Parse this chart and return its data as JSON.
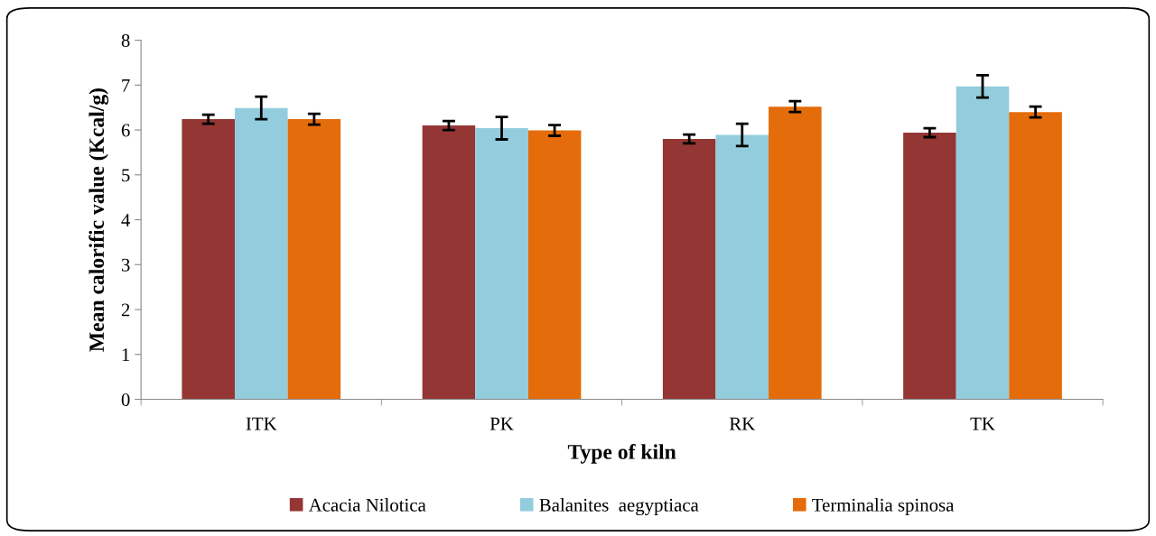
{
  "chart_data": {
    "type": "bar",
    "xlabel": "Type of kiln",
    "ylabel": "Mean calorific value (Kcal/g)",
    "categories": [
      "ITK",
      "PK",
      "RK",
      "TK"
    ],
    "series": [
      {
        "name": "Acacia Nilotica",
        "color": "#943634",
        "values": [
          6.24,
          6.1,
          5.8,
          5.94
        ],
        "errors": [
          0.1,
          0.1,
          0.1,
          0.1
        ]
      },
      {
        "name": "Balanites  aegyptiaca",
        "color": "#93cddd",
        "values": [
          6.49,
          6.04,
          5.89,
          6.97
        ],
        "errors": [
          0.25,
          0.25,
          0.25,
          0.25
        ]
      },
      {
        "name": "Terminalia spinosa",
        "color": "#e46c0a",
        "values": [
          6.24,
          5.99,
          6.52,
          6.4
        ],
        "errors": [
          0.12,
          0.12,
          0.12,
          0.12
        ]
      }
    ],
    "ylim": [
      0,
      8
    ],
    "yticks": [
      0,
      1,
      2,
      3,
      4,
      5,
      6,
      7,
      8
    ],
    "grid": false,
    "legend": "bottom"
  }
}
